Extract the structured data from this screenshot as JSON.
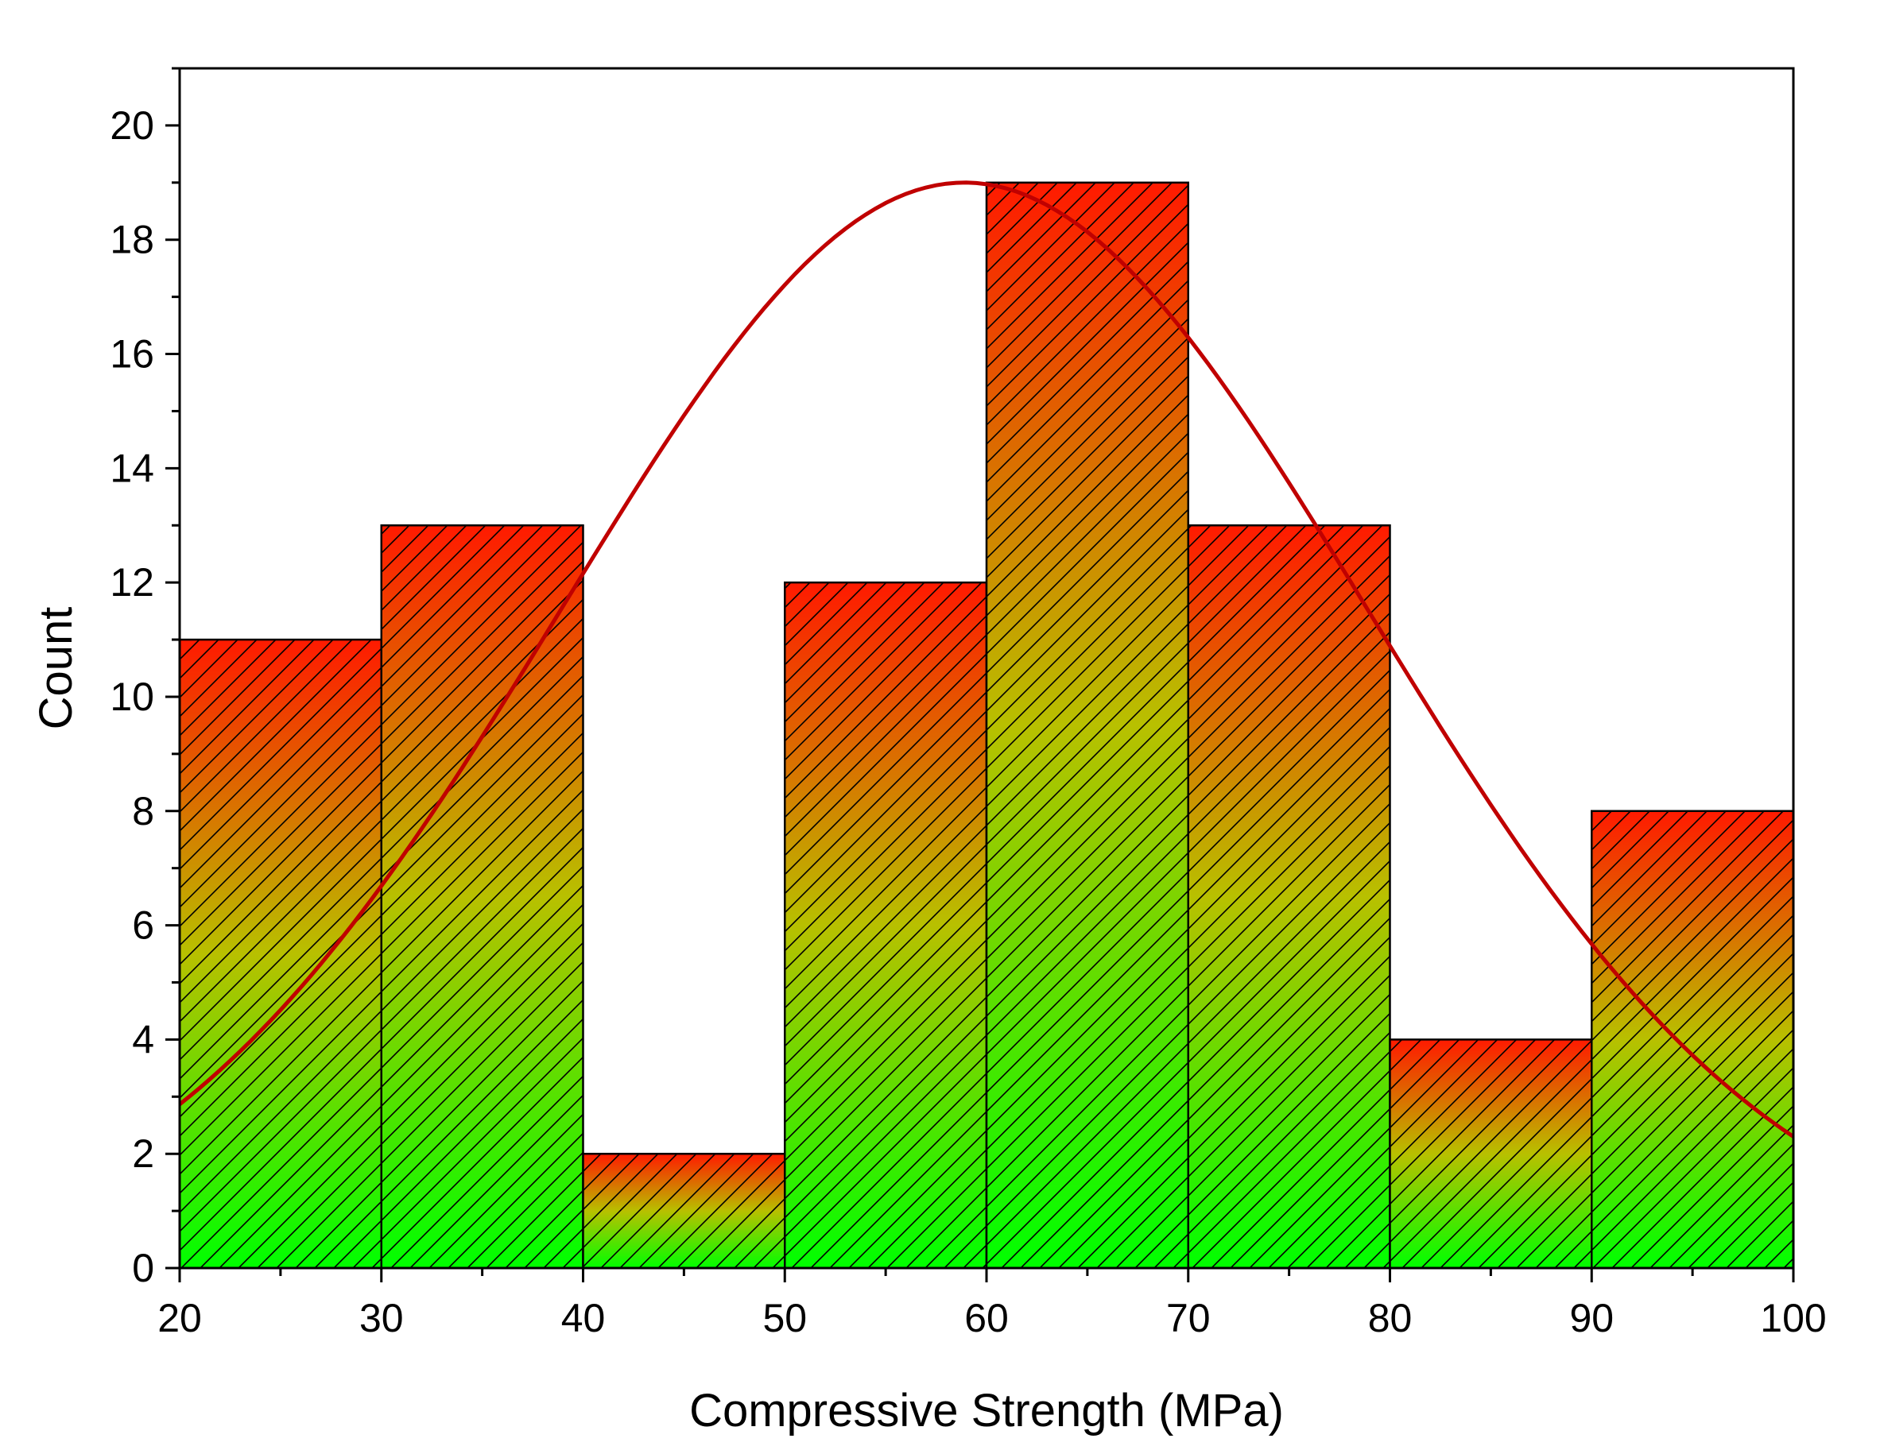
{
  "chart_data": {
    "type": "bar",
    "subtype": "histogram",
    "title": "",
    "xlabel": "Compressive Strength (MPa)",
    "ylabel": "Count",
    "xlim": [
      20,
      100
    ],
    "ylim": [
      0,
      21
    ],
    "x_ticks": [
      20,
      30,
      40,
      50,
      60,
      70,
      80,
      90,
      100
    ],
    "y_ticks": [
      0,
      2,
      4,
      6,
      8,
      10,
      12,
      14,
      16,
      18,
      20
    ],
    "bins": [
      {
        "start": 20,
        "end": 30,
        "count": 11
      },
      {
        "start": 30,
        "end": 40,
        "count": 13
      },
      {
        "start": 40,
        "end": 50,
        "count": 2
      },
      {
        "start": 50,
        "end": 60,
        "count": 12
      },
      {
        "start": 60,
        "end": 70,
        "count": 19
      },
      {
        "start": 70,
        "end": 80,
        "count": 13
      },
      {
        "start": 80,
        "end": 90,
        "count": 4
      },
      {
        "start": 90,
        "end": 100,
        "count": 8
      }
    ],
    "fit_curve": {
      "type": "normal",
      "mean": 58.9,
      "sd": 20.0,
      "peak": 19.0,
      "color": "#c00000"
    },
    "bar_gradient": {
      "top": "#ff1a00",
      "middle": "#b8c000",
      "bottom": "#00ff00"
    },
    "bar_pattern": "diagonal-hatch",
    "grid": false,
    "legend": "none"
  }
}
